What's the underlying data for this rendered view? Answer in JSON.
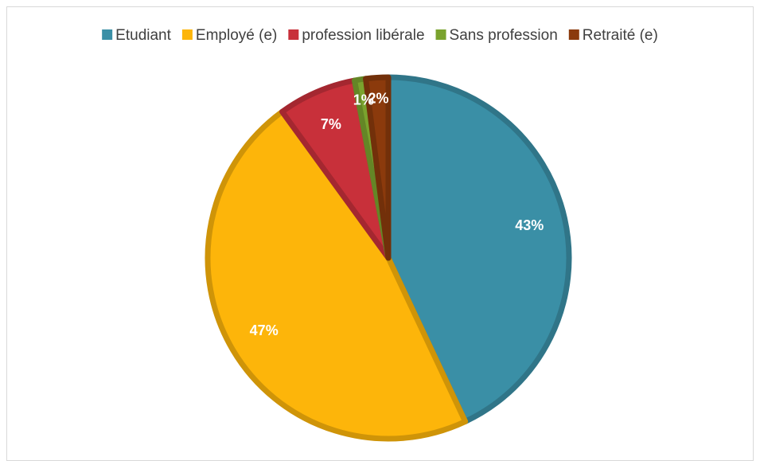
{
  "chart_data": {
    "type": "pie",
    "categories": [
      "Etudiant",
      "Employé (e)",
      "profession libérale",
      "Sans profession",
      "Retraité (e)"
    ],
    "values": [
      43,
      47,
      7,
      1,
      2
    ],
    "value_labels": [
      "43%",
      "47%",
      "7%",
      "1%",
      "2%"
    ],
    "colors": [
      "#3a8fa6",
      "#fdb50a",
      "#c8303a",
      "#7aa32e",
      "#8b3a0c"
    ],
    "legend": "top"
  }
}
